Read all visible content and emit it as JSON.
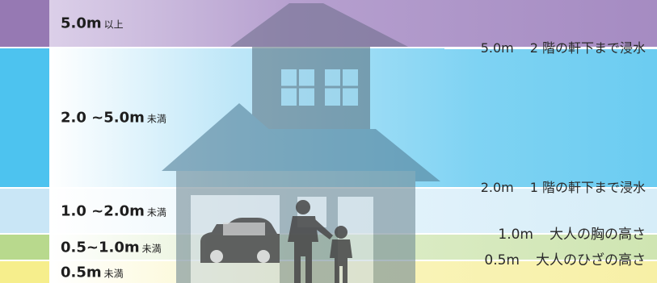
{
  "bands": [
    {
      "value": "5.0m",
      "unit": "以上",
      "color": "#9679b3"
    },
    {
      "value": "2.0 ~5.0m",
      "unit": "未満",
      "color": "#4dc3ef"
    },
    {
      "value": "1.0 ~2.0m",
      "unit": "未満",
      "color": "#c9e6f6"
    },
    {
      "value": "0.5~1.0m",
      "unit": "未満",
      "color": "#b8d98d"
    },
    {
      "value": "0.5m",
      "unit": "未満",
      "color": "#f6ee8c"
    }
  ],
  "markers": [
    {
      "height": "5.0m",
      "text": "2 階の軒下まで浸水"
    },
    {
      "height": "2.0m",
      "text": "1 階の軒下まで浸水"
    },
    {
      "height": "1.0m",
      "text": "大人の胸の高さ"
    },
    {
      "height": "0.5m",
      "text": "大人のひざの高さ"
    }
  ],
  "icons": [
    "house-icon",
    "car-icon",
    "adult-figure-icon",
    "child-figure-icon"
  ]
}
